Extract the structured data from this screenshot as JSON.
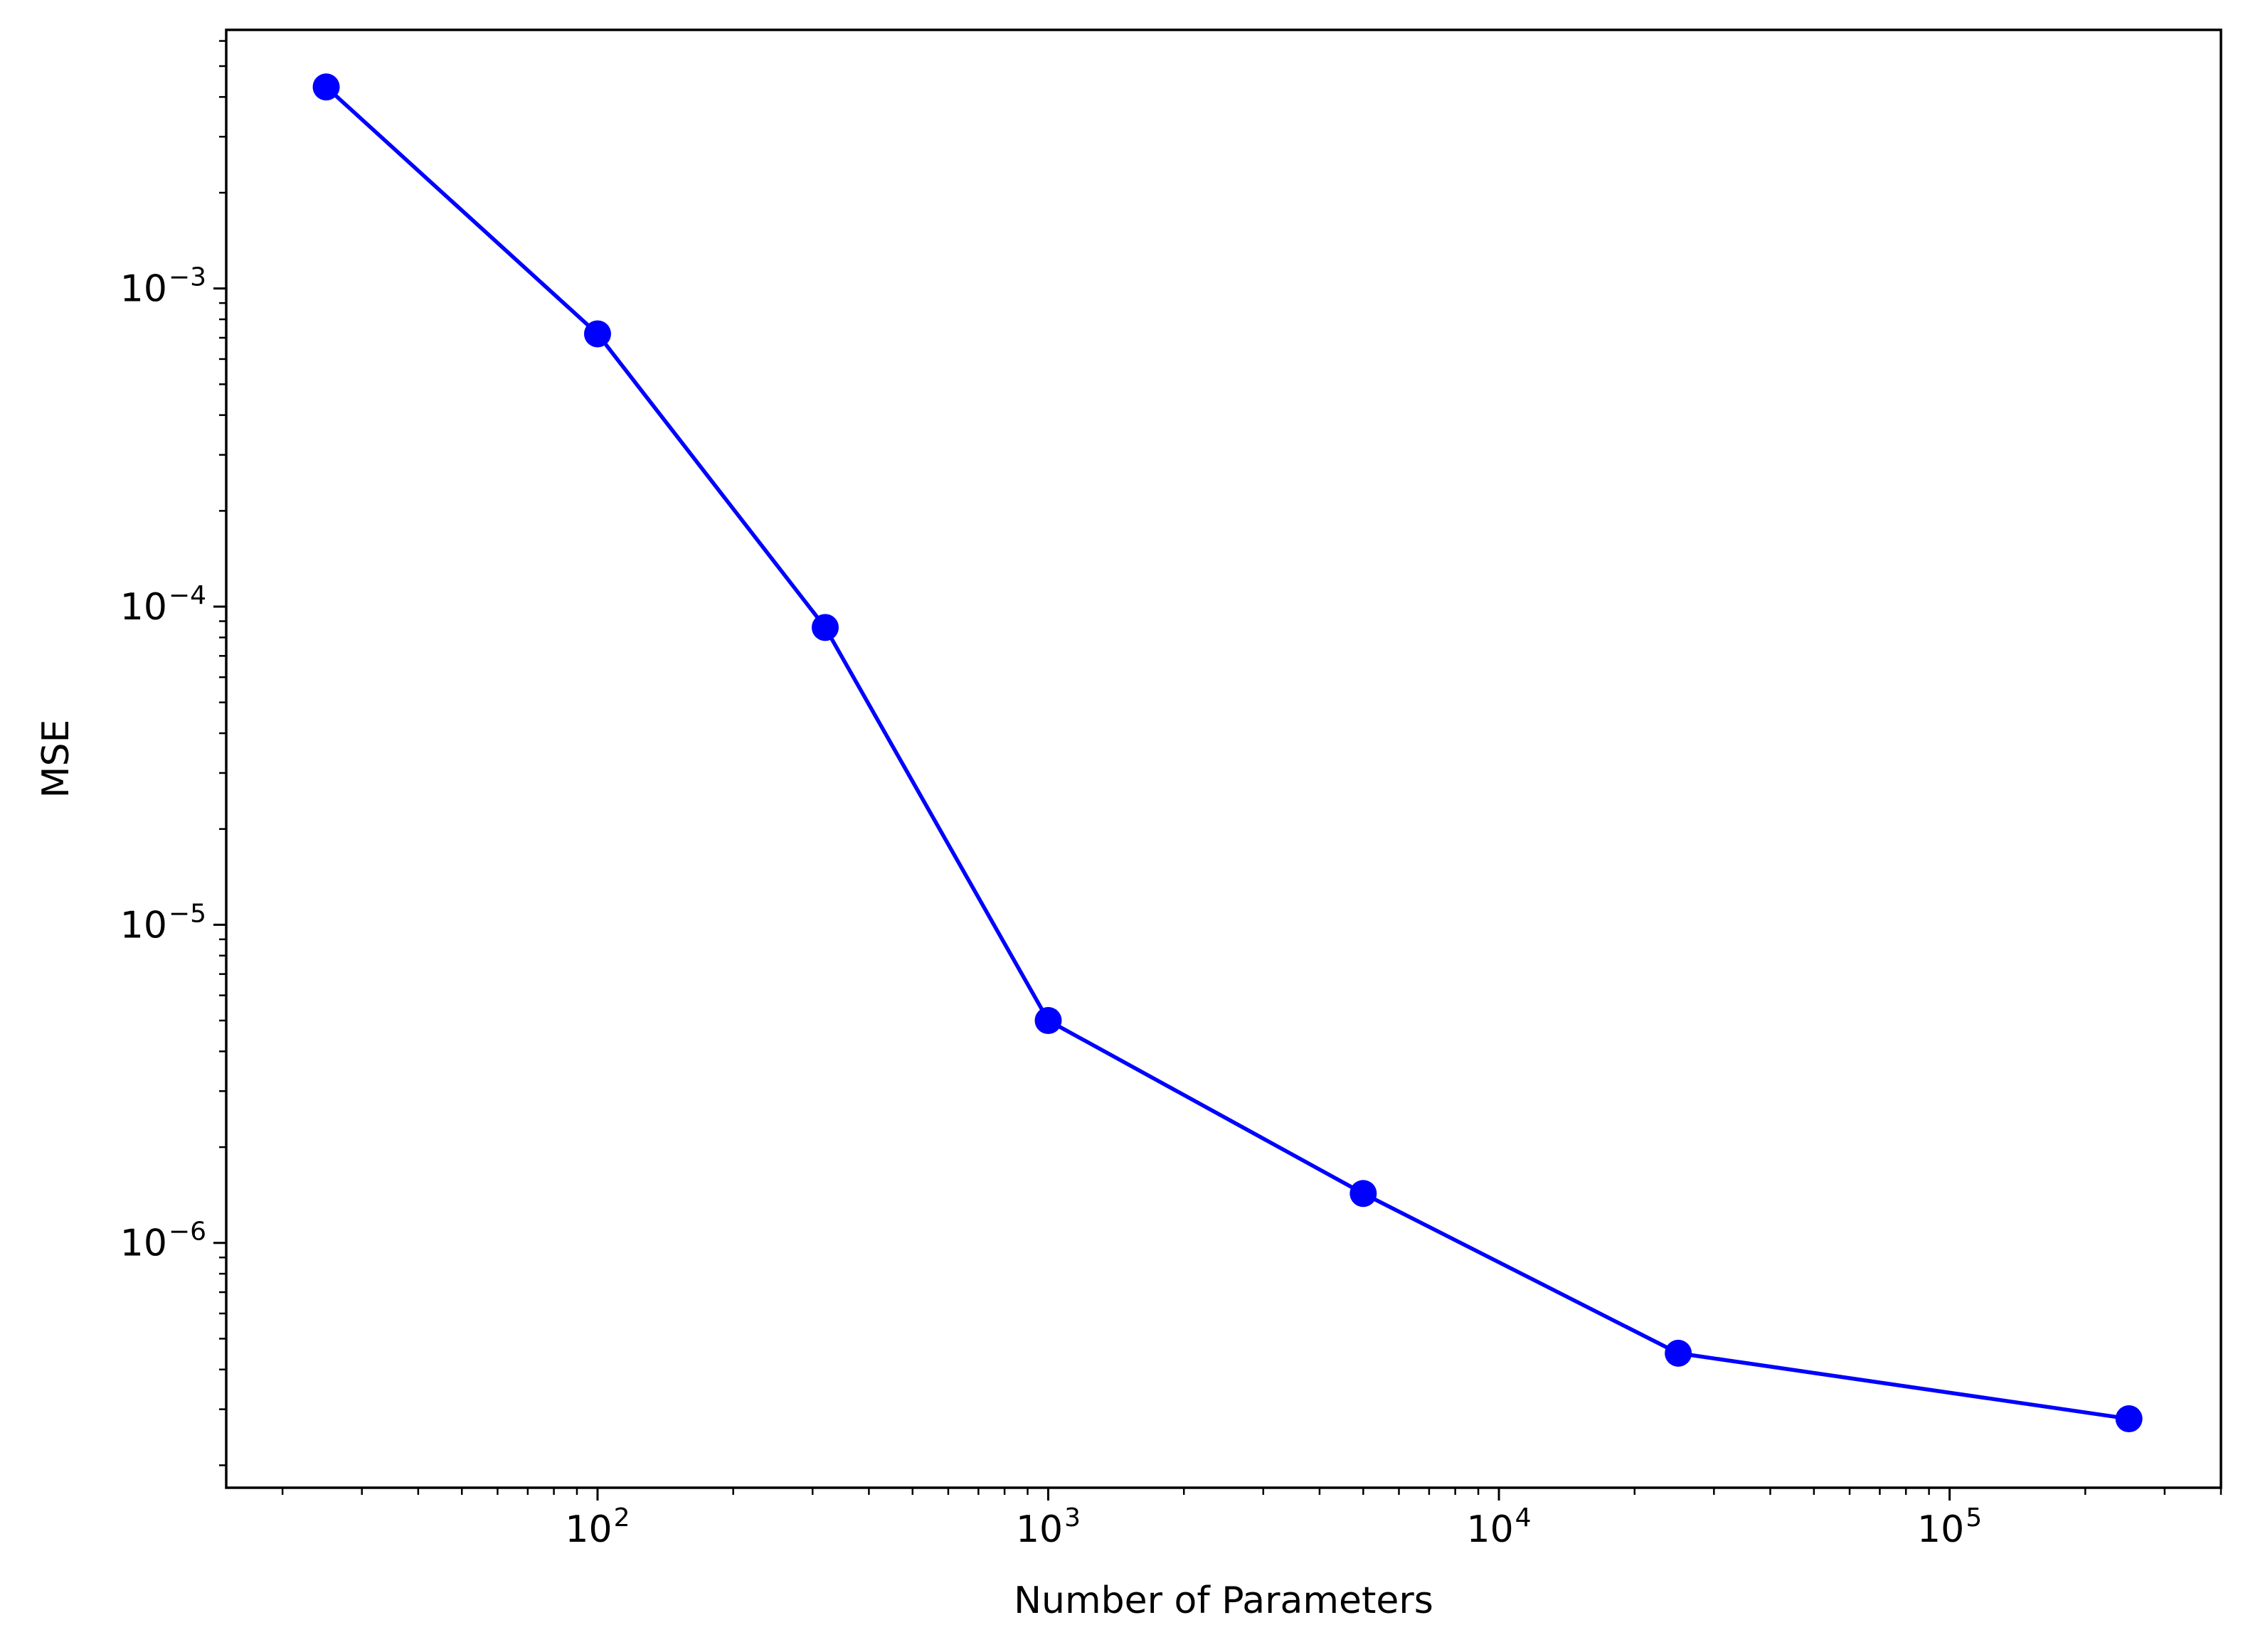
{
  "chart_data": {
    "type": "line",
    "title": "",
    "xlabel": "Number of Parameters",
    "ylabel": "MSE",
    "xscale": "log",
    "yscale": "log",
    "xlim": [
      15,
      400000
    ],
    "ylim": [
      1.7e-07,
      0.0065
    ],
    "grid": false,
    "legend": "none",
    "x_ticks": [
      {
        "value": 100,
        "base": "10",
        "exp": "2"
      },
      {
        "value": 1000,
        "base": "10",
        "exp": "3"
      },
      {
        "value": 10000,
        "base": "10",
        "exp": "4"
      },
      {
        "value": 100000,
        "base": "10",
        "exp": "5"
      }
    ],
    "y_ticks": [
      {
        "value": 1e-06,
        "base": "10",
        "exp": "−6"
      },
      {
        "value": 1e-05,
        "base": "10",
        "exp": "−5"
      },
      {
        "value": 0.0001,
        "base": "10",
        "exp": "−4"
      },
      {
        "value": 0.001,
        "base": "10",
        "exp": "−3"
      }
    ],
    "series": [
      {
        "color": "#0000ff",
        "marker": "circle",
        "x": [
          25,
          100,
          320,
          1000,
          5000,
          25000,
          250000
        ],
        "y": [
          0.0043,
          0.00072,
          8.6e-05,
          5e-06,
          1.43e-06,
          4.5e-07,
          2.8e-07
        ]
      }
    ]
  }
}
